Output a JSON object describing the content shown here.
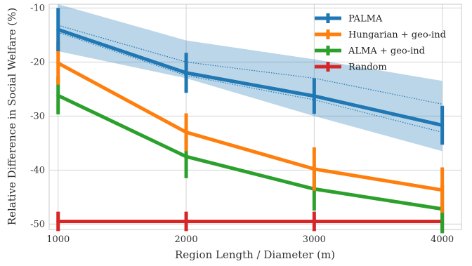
{
  "chart_data": {
    "type": "line",
    "title": "",
    "xlabel": "Region Length / Diameter (m)",
    "ylabel": "Relative Difference in Social Welfare (%)",
    "x": [
      1000,
      2000,
      3000,
      4000
    ],
    "x_ticks": [
      1000,
      2000,
      3000,
      4000
    ],
    "x_tick_labels": [
      "1000",
      "2000",
      "3000",
      "4000"
    ],
    "y_ticks": [
      -50,
      -40,
      -30,
      -20,
      -10
    ],
    "y_tick_labels": [
      "-50",
      "-40",
      "-30",
      "-20",
      "-10"
    ],
    "xlim": [
      930,
      4150
    ],
    "ylim": [
      -51,
      -9.3
    ],
    "grid": true,
    "legend_position": "top-right",
    "series": [
      {
        "name": "PALMA",
        "color": "#1f77b4",
        "values": [
          -14,
          -22,
          -26.3,
          -31.7
        ],
        "error": [
          4,
          3.7,
          3.3,
          3.6
        ],
        "band_upper": [
          -9.3,
          -16,
          -19.5,
          -23.5
        ],
        "band_lower": [
          -18,
          -23,
          -30,
          -36.5
        ],
        "dotted_upper": [
          -13.2,
          -20,
          -23,
          -27.8
        ],
        "dotted_lower": [
          -14.5,
          -22.5,
          -27,
          -33
        ]
      },
      {
        "name": "Hungarian + geo-ind",
        "color": "#ff7f0e",
        "values": [
          -20.2,
          -33,
          -39.8,
          -43.7
        ],
        "error": [
          4,
          3.5,
          4,
          4.2
        ]
      },
      {
        "name": "ALMA + geo-ind",
        "color": "#2ca02c",
        "values": [
          -26.2,
          -37.5,
          -43.5,
          -47.2
        ],
        "error": [
          3.5,
          4,
          4,
          4.5
        ]
      },
      {
        "name": "Random",
        "color": "#d62728",
        "values": [
          -49.5,
          -49.5,
          -49.5,
          -49.5
        ],
        "error": [
          1.8,
          1.8,
          1.8,
          1.8
        ]
      }
    ]
  }
}
